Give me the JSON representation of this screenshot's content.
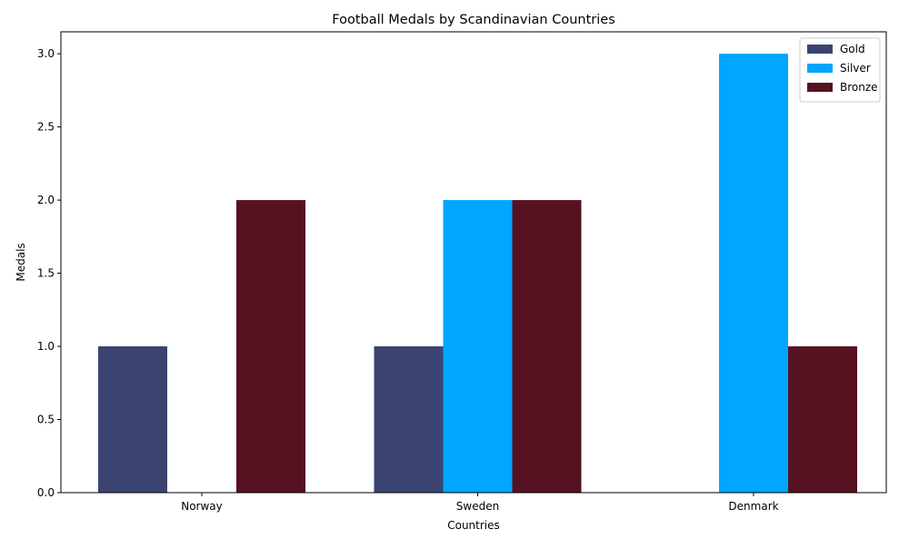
{
  "chart_data": {
    "type": "bar",
    "title": "Football Medals by Scandinavian Countries",
    "xlabel": "Countries",
    "ylabel": "Medals",
    "categories": [
      "Norway",
      "Sweden",
      "Denmark"
    ],
    "series": [
      {
        "name": "Gold",
        "values": [
          1,
          1,
          0
        ],
        "color": "#3b4371"
      },
      {
        "name": "Silver",
        "values": [
          0,
          2,
          3
        ],
        "color": "#00a6ff"
      },
      {
        "name": "Bronze",
        "values": [
          2,
          2,
          1
        ],
        "color": "#561221"
      }
    ],
    "ylim": [
      0,
      3.15
    ],
    "yticks": [
      "0.0",
      "0.5",
      "1.0",
      "1.5",
      "2.0",
      "2.5",
      "3.0"
    ],
    "grid": false,
    "legend_position": "top-right"
  }
}
